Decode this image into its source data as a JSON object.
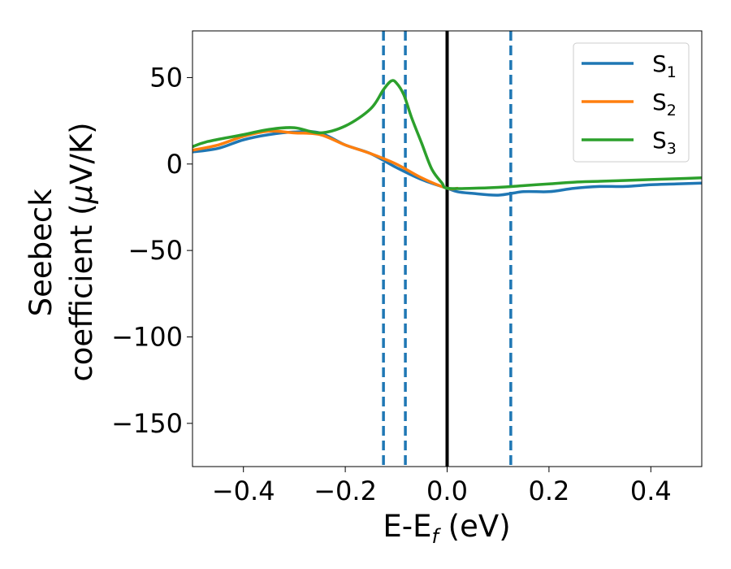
{
  "chart_data": {
    "type": "line",
    "xlabel": {
      "main": "E-E",
      "sub": "f",
      "suffix": " (eV)"
    },
    "ylabel": {
      "line1": "Seebeck",
      "line2": "coefficient  (",
      "mu": "μ",
      "line2_end": "V/K)"
    },
    "xlim": [
      -0.5,
      0.5
    ],
    "ylim": [
      -175,
      77
    ],
    "xticks": [
      -0.4,
      -0.2,
      0.0,
      0.2,
      0.4
    ],
    "xtick_labels": [
      "−0.4",
      "−0.2",
      "0.0",
      "0.2",
      "0.4"
    ],
    "yticks": [
      50,
      0,
      -50,
      -100,
      -150
    ],
    "ytick_labels": [
      "50",
      "0",
      "−50",
      "−100",
      "−150"
    ],
    "vlines": [
      {
        "x": -0.125,
        "style": "dashed",
        "color": "#1f77b4"
      },
      {
        "x": -0.082,
        "style": "dashed",
        "color": "#1f77b4"
      },
      {
        "x": 0.0,
        "style": "solid",
        "color": "#000000"
      },
      {
        "x": 0.125,
        "style": "dashed",
        "color": "#1f77b4"
      }
    ],
    "legend_position": "top-right",
    "series": [
      {
        "name": "S",
        "sub": "1",
        "color": "#1f77b4",
        "points": [
          [
            -0.5,
            7
          ],
          [
            -0.45,
            9
          ],
          [
            -0.4,
            14
          ],
          [
            -0.35,
            17
          ],
          [
            -0.3,
            18.5
          ],
          [
            -0.25,
            18
          ],
          [
            -0.2,
            11
          ],
          [
            -0.15,
            6
          ],
          [
            -0.1,
            -2
          ],
          [
            -0.05,
            -9
          ],
          [
            0,
            -14
          ],
          [
            0.02,
            -16
          ],
          [
            0.05,
            -17
          ],
          [
            0.1,
            -18
          ],
          [
            0.15,
            -16
          ],
          [
            0.2,
            -16
          ],
          [
            0.25,
            -14
          ],
          [
            0.3,
            -13
          ],
          [
            0.35,
            -13
          ],
          [
            0.4,
            -12
          ],
          [
            0.45,
            -11.5
          ],
          [
            0.5,
            -11
          ]
        ]
      },
      {
        "name": "S",
        "sub": "2",
        "color": "#ff7f0e",
        "points": [
          [
            -0.5,
            8
          ],
          [
            -0.45,
            11
          ],
          [
            -0.4,
            16
          ],
          [
            -0.35,
            19
          ],
          [
            -0.3,
            18
          ],
          [
            -0.25,
            17
          ],
          [
            -0.2,
            11
          ],
          [
            -0.15,
            6
          ],
          [
            -0.1,
            0
          ],
          [
            -0.05,
            -8
          ],
          [
            0,
            -14
          ],
          [
            0.02,
            -14
          ]
        ]
      },
      {
        "name": "S",
        "sub": "3",
        "color": "#2ca02c",
        "points": [
          [
            -0.5,
            10
          ],
          [
            -0.47,
            13
          ],
          [
            -0.4,
            17
          ],
          [
            -0.35,
            20
          ],
          [
            -0.3,
            21
          ],
          [
            -0.25,
            18
          ],
          [
            -0.2,
            22
          ],
          [
            -0.15,
            32
          ],
          [
            -0.125,
            43
          ],
          [
            -0.11,
            48
          ],
          [
            -0.1,
            47
          ],
          [
            -0.085,
            40
          ],
          [
            -0.07,
            27
          ],
          [
            -0.05,
            12
          ],
          [
            -0.03,
            -3
          ],
          [
            -0.01,
            -11
          ],
          [
            0,
            -14
          ],
          [
            0.05,
            -14
          ],
          [
            0.1,
            -13.5
          ],
          [
            0.15,
            -12.5
          ],
          [
            0.2,
            -11.5
          ],
          [
            0.25,
            -10.5
          ],
          [
            0.3,
            -10
          ],
          [
            0.35,
            -9.5
          ],
          [
            0.4,
            -9
          ],
          [
            0.45,
            -8.5
          ],
          [
            0.5,
            -8
          ]
        ]
      }
    ]
  }
}
